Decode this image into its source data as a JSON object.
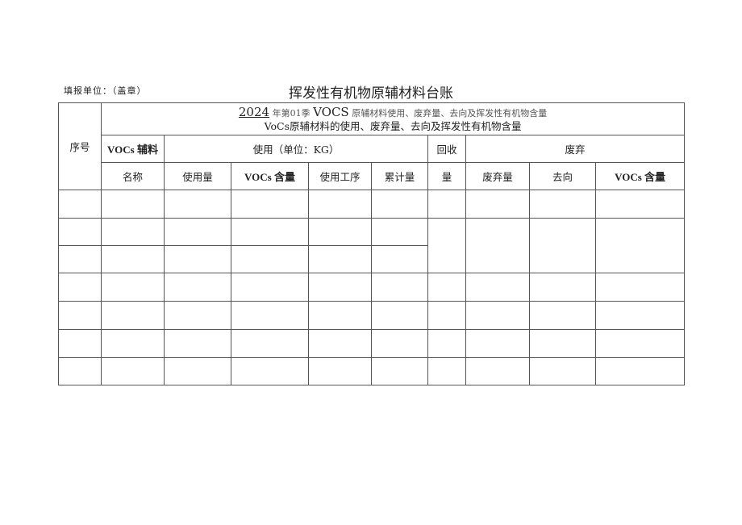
{
  "fill_unit": "填报单位：（盖章）",
  "title": "挥发性有机物原辅材料台账",
  "subtitle_overlay": {
    "year": "2024",
    "mid": "年第01季",
    "vocs": "VOCS",
    "rest": "原辅材料使用、废弃量、去向及挥发性有机物含量"
  },
  "subtitle": "VoCs原辅材料的使用、废弃量、去向及挥发性有机物含量",
  "headers": {
    "seq": "序号",
    "material_top": "VOCs 辅料",
    "material_bottom": "名称",
    "usage_group": "使用（单位：KG）",
    "usage_amount": "使用量",
    "usage_vocs": "VOCs 含量",
    "usage_process": "使用工序",
    "usage_total": "累计量",
    "recycle_top": "回收",
    "recycle_bottom": "量",
    "waste_group": "废弃",
    "waste_amount": "废弃量",
    "waste_destination": "去向",
    "waste_vocs": "VOCs 含量"
  }
}
